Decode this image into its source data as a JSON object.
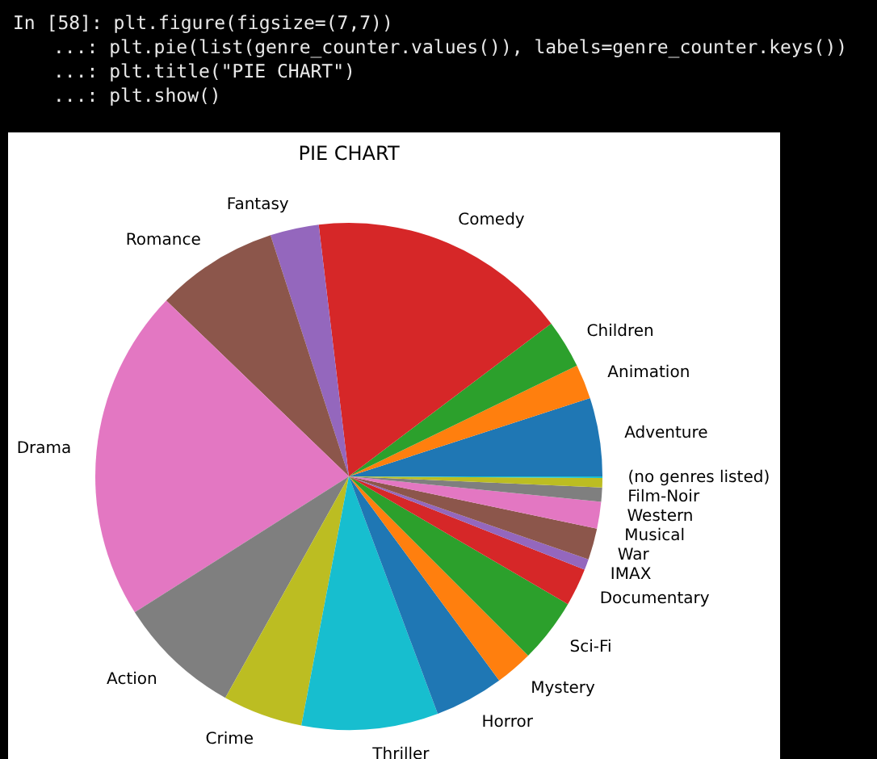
{
  "chart_data": {
    "type": "pie",
    "title": "PIE CHART",
    "categories": [
      "Adventure",
      "Animation",
      "Children",
      "Comedy",
      "Fantasy",
      "Romance",
      "Drama",
      "Action",
      "Crime",
      "Thriller",
      "Horror",
      "Mystery",
      "Sci-Fi",
      "Documentary",
      "IMAX",
      "War",
      "Musical",
      "Western",
      "Film-Noir",
      "(no genres listed)"
    ],
    "values": [
      5.0,
      2.2,
      3.1,
      16.6,
      3.1,
      7.8,
      21.2,
      7.9,
      5.1,
      8.7,
      4.4,
      2.4,
      4.1,
      2.4,
      0.7,
      2.0,
      1.7,
      0.9,
      0.6,
      0.1
    ],
    "colors": [
      "#1f77b4",
      "#ff7f0e",
      "#2ca02c",
      "#d62728",
      "#9467bd",
      "#8c564b",
      "#e377c2",
      "#7f7f7f",
      "#bcbd22",
      "#17becf",
      "#1f77b4",
      "#ff7f0e",
      "#2ca02c",
      "#d62728",
      "#9467bd",
      "#8c564b",
      "#e377c2",
      "#7f7f7f",
      "#bcbd22",
      "#17becf"
    ],
    "annotations": [
      "In [58]: plt.figure(figsize=(7,7))",
      "...: plt.pie(list(genre_counter.values()), labels=genre_counter.keys())",
      "...: plt.title(\"PIE CHART\")",
      "...: plt.show()"
    ]
  }
}
